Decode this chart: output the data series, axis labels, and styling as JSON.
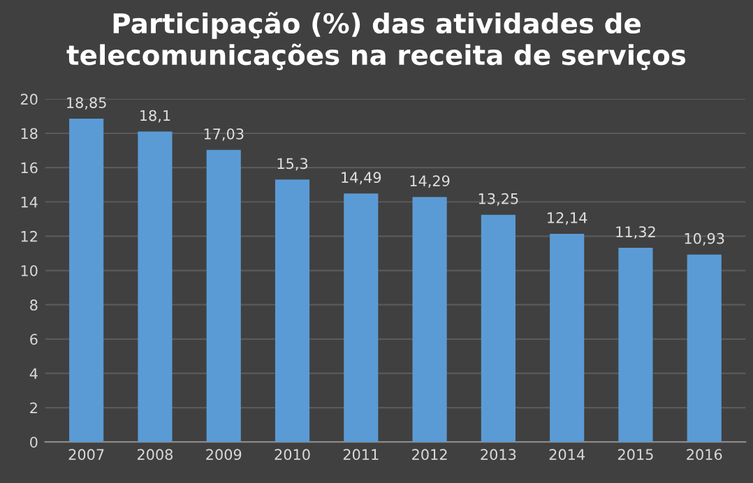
{
  "chart_data": {
    "type": "bar",
    "title": "Participação (%) das atividades de\ntelecomunicações na receita de serviços",
    "categories": [
      "2007",
      "2008",
      "2009",
      "2010",
      "2011",
      "2012",
      "2013",
      "2014",
      "2015",
      "2016"
    ],
    "values": [
      18.85,
      18.1,
      17.03,
      15.3,
      14.49,
      14.29,
      13.25,
      12.14,
      11.32,
      10.93
    ],
    "value_labels": [
      "18,85",
      "18,1",
      "17,03",
      "15,3",
      "14,49",
      "14,29",
      "13,25",
      "12,14",
      "11,32",
      "10,93"
    ],
    "color": "#5b9bd5",
    "ylim": [
      0,
      20
    ],
    "yticks": [
      0,
      2,
      4,
      6,
      8,
      10,
      12,
      14,
      16,
      18,
      20
    ],
    "grid": "y"
  }
}
